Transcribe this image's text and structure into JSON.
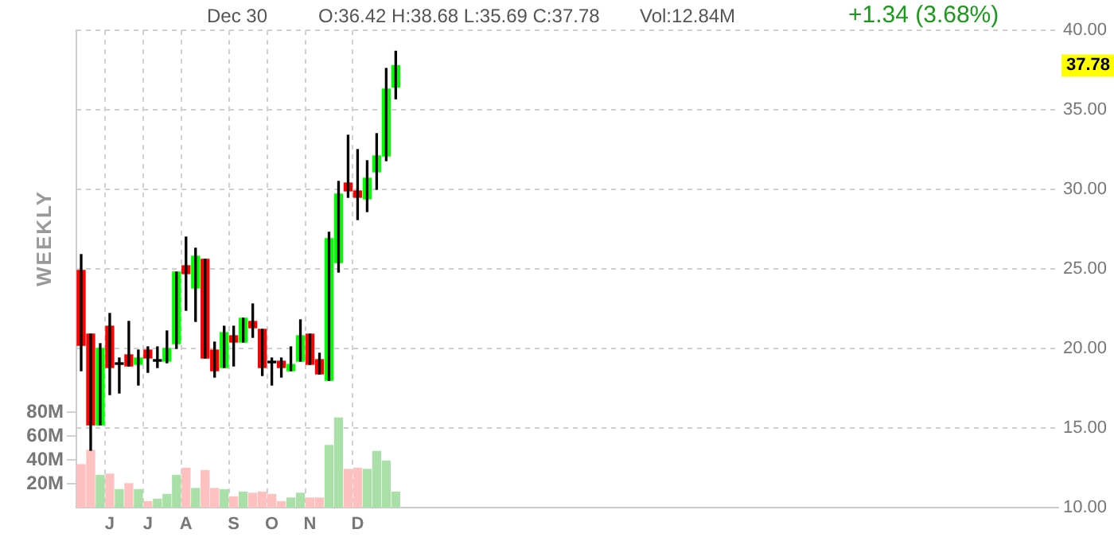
{
  "chart_data": {
    "type": "candlestick",
    "categories": [
      null,
      null,
      null,
      "J",
      null,
      null,
      null,
      "J",
      null,
      null,
      null,
      "A",
      null,
      null,
      null,
      null,
      "S",
      null,
      null,
      null,
      "O",
      null,
      null,
      null,
      "N",
      null,
      null,
      null,
      null,
      "D",
      null,
      null,
      null,
      null,
      null,
      null,
      null,
      null,
      null,
      null,
      null,
      null,
      null,
      null,
      null,
      null,
      null,
      null,
      null,
      null,
      null,
      null,
      null,
      null,
      null,
      null,
      null,
      null,
      null,
      null,
      null,
      null,
      null,
      null,
      null,
      null,
      null,
      null,
      null,
      null,
      null,
      null,
      null,
      null,
      null,
      null,
      null,
      null,
      null,
      null,
      null,
      null,
      null,
      null,
      null,
      null,
      null,
      null,
      null,
      null,
      null,
      null,
      null,
      null,
      null,
      null,
      null,
      null,
      null,
      null,
      null,
      null,
      null
    ],
    "ohlc": [
      [
        24.9,
        25.9,
        18.6,
        20.2
      ],
      [
        20.9,
        20.9,
        13.6,
        15.2
      ],
      [
        15.2,
        20.3,
        15.2,
        20.0
      ],
      [
        21.4,
        22.2,
        17.1,
        18.8
      ],
      [
        19.0,
        19.4,
        17.2,
        19.0
      ],
      [
        19.6,
        21.7,
        18.9,
        18.9
      ],
      [
        19.0,
        19.9,
        17.7,
        19.4
      ],
      [
        19.9,
        20.1,
        18.5,
        19.4
      ],
      [
        19.2,
        20.1,
        18.8,
        19.2
      ],
      [
        19.2,
        21.1,
        19.1,
        20.0
      ],
      [
        20.3,
        24.8,
        20.0,
        24.8
      ],
      [
        25.2,
        27.0,
        22.4,
        24.7
      ],
      [
        23.8,
        26.3,
        21.7,
        25.8
      ],
      [
        25.6,
        25.6,
        19.4,
        19.4
      ],
      [
        19.9,
        20.4,
        18.2,
        18.6
      ],
      [
        18.8,
        21.4,
        18.8,
        21.0
      ],
      [
        20.8,
        21.4,
        18.9,
        20.4
      ],
      [
        20.4,
        21.9,
        20.4,
        21.9
      ],
      [
        21.7,
        22.8,
        20.7,
        21.3
      ],
      [
        21.2,
        21.2,
        18.3,
        18.8
      ],
      [
        19.1,
        19.4,
        17.7,
        19.1
      ],
      [
        19.2,
        19.4,
        18.2,
        18.8
      ],
      [
        18.6,
        20.1,
        18.6,
        19.0
      ],
      [
        19.2,
        21.8,
        19.2,
        20.8
      ],
      [
        20.9,
        20.9,
        19.0,
        19.0
      ],
      [
        19.3,
        19.7,
        18.4,
        18.4
      ],
      [
        18.0,
        27.3,
        18.0,
        26.9
      ],
      [
        25.4,
        30.5,
        24.8,
        29.7
      ],
      [
        30.4,
        33.4,
        29.5,
        29.9
      ],
      [
        29.9,
        32.5,
        28.1,
        29.5
      ],
      [
        29.4,
        31.8,
        28.6,
        30.7
      ],
      [
        31.1,
        33.5,
        30.0,
        32.1
      ],
      [
        32.1,
        37.6,
        31.8,
        36.3
      ],
      [
        36.42,
        38.68,
        35.69,
        37.78
      ],
      null,
      null,
      null,
      null,
      null,
      null,
      null,
      null,
      null,
      null,
      null,
      null,
      null,
      null,
      null,
      null,
      null,
      null,
      null,
      null,
      null,
      null,
      null,
      null,
      null,
      null,
      null,
      null,
      null,
      null,
      null,
      null,
      null,
      null,
      null,
      null,
      null,
      null,
      null,
      null,
      null,
      null,
      null,
      null,
      null,
      null,
      null,
      null,
      null,
      null,
      null,
      null,
      null,
      null,
      null,
      null,
      null,
      null,
      null,
      null,
      null,
      null,
      null,
      null,
      null,
      null,
      null,
      null,
      null
    ],
    "colors": [
      "#ff0000",
      "#ff0000",
      "#00ff00",
      "#ff0000",
      "#000000",
      "#ff0000",
      "#00ff00",
      "#ff0000",
      "#000000",
      "#00ff00",
      "#00ff00",
      "#ff0000",
      "#00ff00",
      "#ff0000",
      "#ff0000",
      "#00ff00",
      "#ff0000",
      "#00ff00",
      "#ff0000",
      "#ff0000",
      "#000000",
      "#ff0000",
      "#00ff00",
      "#00ff00",
      "#ff0000",
      "#ff0000",
      "#00ff00",
      "#00ff00",
      "#ff0000",
      "#ff0000",
      "#00ff00",
      "#00ff00",
      "#00ff00",
      "#00ff00",
      null,
      null,
      null,
      null,
      null,
      null,
      null,
      null,
      null,
      null,
      null,
      null,
      null,
      null,
      null,
      null,
      null,
      null,
      null,
      null,
      null,
      null,
      null,
      null,
      null,
      null,
      null,
      null,
      null,
      null,
      null,
      null,
      null,
      null,
      null,
      null,
      null,
      null,
      null,
      null,
      null,
      null,
      null,
      null,
      null,
      null,
      null,
      null,
      null,
      null,
      null,
      null,
      null,
      null,
      null,
      null,
      null,
      null,
      null,
      null,
      null,
      null,
      null,
      null,
      null,
      null,
      null,
      null,
      null
    ],
    "series": [
      {
        "type": "bar",
        "axis": "y2",
        "values": [
          36,
          48,
          27,
          28,
          15,
          20,
          15,
          5,
          7,
          11,
          27,
          33,
          16,
          31,
          16,
          15,
          9,
          13,
          12,
          13,
          11,
          5,
          8,
          12,
          8,
          8,
          52,
          75,
          32,
          33,
          32,
          47,
          39,
          13,
          null,
          null,
          null,
          null,
          null,
          null,
          null,
          null,
          null,
          null,
          null,
          null,
          null,
          null,
          null,
          null,
          null,
          null,
          null,
          null,
          null,
          null,
          null,
          null,
          null,
          null,
          null,
          null,
          null,
          null,
          null,
          null,
          null,
          null,
          null,
          null,
          null,
          null,
          null,
          null,
          null,
          null,
          null,
          null,
          null,
          null,
          null,
          null,
          null,
          null,
          null,
          null,
          null,
          null,
          null,
          null,
          null,
          null,
          null,
          null,
          null,
          null,
          null,
          null,
          null,
          null,
          null,
          null,
          null
        ],
        "colors": [
          "#ffc0c0",
          "#ffc0c0",
          "#a8e0a8",
          "#ffc0c0",
          "#a8e0a8",
          "#ffc0c0",
          "#a8e0a8",
          "#ffc0c0",
          "#a8e0a8",
          "#a8e0a8",
          "#a8e0a8",
          "#ffc0c0",
          "#a8e0a8",
          "#ffc0c0",
          "#ffc0c0",
          "#a8e0a8",
          "#ffc0c0",
          "#a8e0a8",
          "#ffc0c0",
          "#ffc0c0",
          "#ffc0c0",
          "#ffc0c0",
          "#a8e0a8",
          "#a8e0a8",
          "#ffc0c0",
          "#ffc0c0",
          "#a8e0a8",
          "#a8e0a8",
          "#ffc0c0",
          "#ffc0c0",
          "#a8e0a8",
          "#a8e0a8",
          "#a8e0a8",
          "#a8e0a8",
          null,
          null,
          null,
          null,
          null,
          null,
          null,
          null,
          null,
          null,
          null,
          null,
          null,
          null,
          null,
          null,
          null,
          null,
          null,
          null,
          null,
          null,
          null,
          null,
          null,
          null,
          null,
          null,
          null,
          null,
          null,
          null,
          null,
          null,
          null,
          null,
          null,
          null,
          null,
          null,
          null,
          null,
          null,
          null,
          null,
          null,
          null,
          null,
          null,
          null,
          null,
          null,
          null,
          null,
          null,
          null,
          null,
          null,
          null,
          null,
          null,
          null,
          null,
          null,
          null,
          null,
          null,
          null,
          null
        ]
      }
    ],
    "ylim": [
      10,
      40
    ],
    "yticks": [
      {
        "value": 10,
        "label": "10.00"
      },
      {
        "value": 15,
        "label": "15.00"
      },
      {
        "value": 20,
        "label": "20.00"
      },
      {
        "value": 25,
        "label": "25.00"
      },
      {
        "value": 30,
        "label": "30.00"
      },
      {
        "value": 35,
        "label": "35.00"
      },
      {
        "value": 40,
        "label": "40.00"
      }
    ],
    "y2lim": [
      0,
      400
    ],
    "y2ticks": [
      {
        "value": 20,
        "label": "20M"
      },
      {
        "value": 40,
        "label": "40M"
      },
      {
        "value": 60,
        "label": "60M"
      },
      {
        "value": 80,
        "label": "80M"
      }
    ],
    "grid": true,
    "legend": false,
    "annotations": [
      "Dec 30",
      "O:36.42 H:38.68 L:35.69 C:37.78",
      "Vol:12.84M",
      "+1.34 (3.68%)",
      "WEEKLY",
      {
        "text": "37.78",
        "y": 37.78
      }
    ]
  }
}
